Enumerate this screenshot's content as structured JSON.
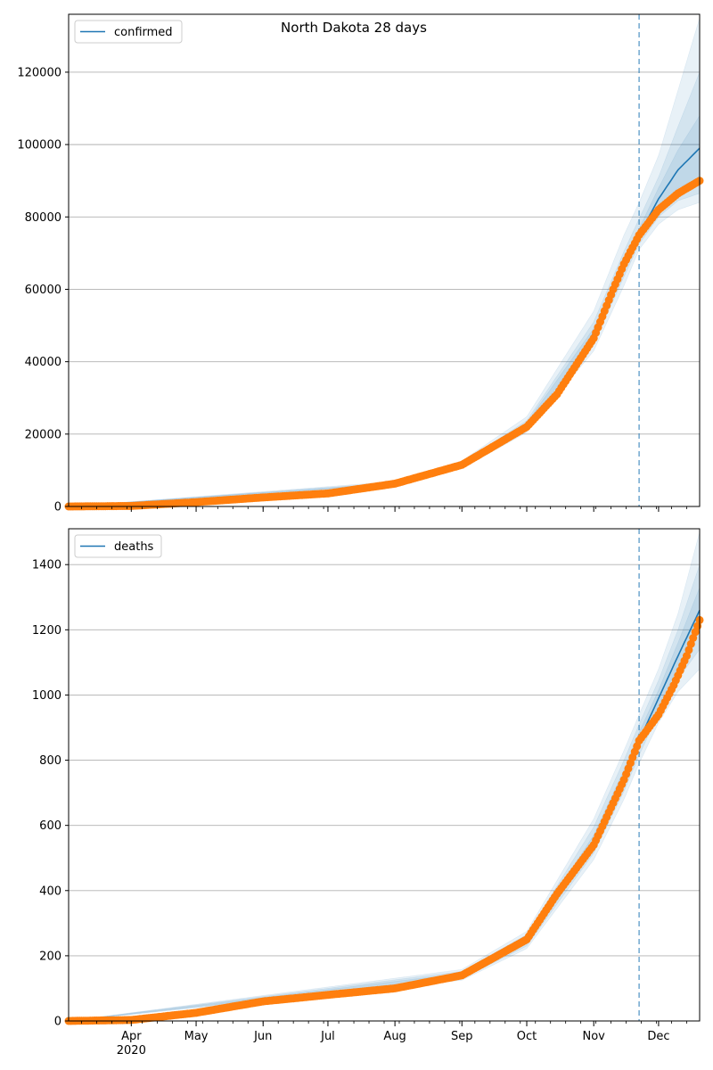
{
  "title": "North Dakota 28 days",
  "colors": {
    "model": "#1f77b4",
    "observed": "#ff7f0e",
    "band": "#1f77b4",
    "grid": "#b0b0b0",
    "forecast_line": "#1f77b4"
  },
  "x_axis": {
    "month_labels": [
      "Apr",
      "May",
      "Jun",
      "Jul",
      "Aug",
      "Sep",
      "Oct",
      "Nov",
      "Dec"
    ],
    "year_label": "2020",
    "range": [
      "2020-03-03",
      "2020-12-20"
    ],
    "forecast_start": "2020-11-22"
  },
  "chart_data": [
    {
      "type": "line",
      "legend": "confirmed",
      "ylim": [
        0,
        136000
      ],
      "yticks": [
        0,
        20000,
        40000,
        60000,
        80000,
        100000,
        120000
      ],
      "grid": "horizontal",
      "legend_placement": "top-left",
      "observed_anchors": [
        {
          "x": "2020-03-03",
          "y": 0
        },
        {
          "x": "2020-04-01",
          "y": 140
        },
        {
          "x": "2020-05-01",
          "y": 1200
        },
        {
          "x": "2020-06-01",
          "y": 2500
        },
        {
          "x": "2020-07-01",
          "y": 3600
        },
        {
          "x": "2020-08-01",
          "y": 6300
        },
        {
          "x": "2020-09-01",
          "y": 11500
        },
        {
          "x": "2020-10-01",
          "y": 22000
        },
        {
          "x": "2020-10-15",
          "y": 31000
        },
        {
          "x": "2020-11-01",
          "y": 46500
        },
        {
          "x": "2020-11-10",
          "y": 60000
        },
        {
          "x": "2020-11-15",
          "y": 67000
        },
        {
          "x": "2020-11-22",
          "y": 75000
        },
        {
          "x": "2020-12-01",
          "y": 82000
        },
        {
          "x": "2020-12-10",
          "y": 86500
        },
        {
          "x": "2020-12-20",
          "y": 90000
        }
      ],
      "model_anchors": [
        {
          "x": "2020-03-03",
          "y": 0
        },
        {
          "x": "2020-04-01",
          "y": 150
        },
        {
          "x": "2020-05-01",
          "y": 1200
        },
        {
          "x": "2020-06-01",
          "y": 2500
        },
        {
          "x": "2020-07-01",
          "y": 3600
        },
        {
          "x": "2020-08-01",
          "y": 6300
        },
        {
          "x": "2020-09-01",
          "y": 11500
        },
        {
          "x": "2020-10-01",
          "y": 22500
        },
        {
          "x": "2020-10-15",
          "y": 32000
        },
        {
          "x": "2020-11-01",
          "y": 48000
        },
        {
          "x": "2020-11-15",
          "y": 66500
        },
        {
          "x": "2020-11-22",
          "y": 75000
        },
        {
          "x": "2020-12-01",
          "y": 85000
        },
        {
          "x": "2020-12-10",
          "y": 93000
        },
        {
          "x": "2020-12-20",
          "y": 99000
        }
      ],
      "bands": [
        {
          "low": [
            {
              "x": "2020-03-03",
              "y": 0
            },
            {
              "x": "2020-08-01",
              "y": 5800
            },
            {
              "x": "2020-09-01",
              "y": 10500
            },
            {
              "x": "2020-10-01",
              "y": 20500
            },
            {
              "x": "2020-11-01",
              "y": 43000
            },
            {
              "x": "2020-11-15",
              "y": 61000
            },
            {
              "x": "2020-11-22",
              "y": 71000
            },
            {
              "x": "2020-12-01",
              "y": 78000
            },
            {
              "x": "2020-12-10",
              "y": 82000
            },
            {
              "x": "2020-12-20",
              "y": 84000
            }
          ],
          "high": [
            {
              "x": "2020-03-03",
              "y": 0
            },
            {
              "x": "2020-08-01",
              "y": 6900
            },
            {
              "x": "2020-09-01",
              "y": 12600
            },
            {
              "x": "2020-10-01",
              "y": 24800
            },
            {
              "x": "2020-11-01",
              "y": 54000
            },
            {
              "x": "2020-11-15",
              "y": 75000
            },
            {
              "x": "2020-11-22",
              "y": 84000
            },
            {
              "x": "2020-12-01",
              "y": 97000
            },
            {
              "x": "2020-12-10",
              "y": 115000
            },
            {
              "x": "2020-12-20",
              "y": 135000
            }
          ]
        },
        {
          "low": [
            {
              "x": "2020-03-03",
              "y": 0
            },
            {
              "x": "2020-08-01",
              "y": 6000
            },
            {
              "x": "2020-09-01",
              "y": 10900
            },
            {
              "x": "2020-10-01",
              "y": 21300
            },
            {
              "x": "2020-11-01",
              "y": 45000
            },
            {
              "x": "2020-11-15",
              "y": 63500
            },
            {
              "x": "2020-11-22",
              "y": 72500
            },
            {
              "x": "2020-12-01",
              "y": 80000
            },
            {
              "x": "2020-12-10",
              "y": 84500
            },
            {
              "x": "2020-12-20",
              "y": 86500
            }
          ],
          "high": [
            {
              "x": "2020-03-03",
              "y": 0
            },
            {
              "x": "2020-08-01",
              "y": 6600
            },
            {
              "x": "2020-09-01",
              "y": 12100
            },
            {
              "x": "2020-10-01",
              "y": 23700
            },
            {
              "x": "2020-11-01",
              "y": 51000
            },
            {
              "x": "2020-11-15",
              "y": 70500
            },
            {
              "x": "2020-11-22",
              "y": 79500
            },
            {
              "x": "2020-12-01",
              "y": 91000
            },
            {
              "x": "2020-12-10",
              "y": 105000
            },
            {
              "x": "2020-12-20",
              "y": 120000
            }
          ]
        },
        {
          "low": [
            {
              "x": "2020-03-03",
              "y": 0
            },
            {
              "x": "2020-08-01",
              "y": 6150
            },
            {
              "x": "2020-09-01",
              "y": 11200
            },
            {
              "x": "2020-10-01",
              "y": 21900
            },
            {
              "x": "2020-11-01",
              "y": 46800
            },
            {
              "x": "2020-11-15",
              "y": 65200
            },
            {
              "x": "2020-11-22",
              "y": 73800
            },
            {
              "x": "2020-12-01",
              "y": 82500
            },
            {
              "x": "2020-12-10",
              "y": 88000
            },
            {
              "x": "2020-12-20",
              "y": 91000
            }
          ],
          "high": [
            {
              "x": "2020-03-03",
              "y": 0
            },
            {
              "x": "2020-08-01",
              "y": 6450
            },
            {
              "x": "2020-09-01",
              "y": 11800
            },
            {
              "x": "2020-10-01",
              "y": 23100
            },
            {
              "x": "2020-11-01",
              "y": 49200
            },
            {
              "x": "2020-11-15",
              "y": 68000
            },
            {
              "x": "2020-11-22",
              "y": 76800
            },
            {
              "x": "2020-12-01",
              "y": 88000
            },
            {
              "x": "2020-12-10",
              "y": 98500
            },
            {
              "x": "2020-12-20",
              "y": 108000
            }
          ]
        }
      ]
    },
    {
      "type": "line",
      "legend": "deaths",
      "ylim": [
        0,
        1510
      ],
      "yticks": [
        0,
        200,
        400,
        600,
        800,
        1000,
        1200,
        1400
      ],
      "grid": "horizontal",
      "legend_placement": "top-left",
      "observed_anchors": [
        {
          "x": "2020-03-03",
          "y": 0
        },
        {
          "x": "2020-04-01",
          "y": 3
        },
        {
          "x": "2020-05-01",
          "y": 25
        },
        {
          "x": "2020-06-01",
          "y": 60
        },
        {
          "x": "2020-07-01",
          "y": 80
        },
        {
          "x": "2020-08-01",
          "y": 100
        },
        {
          "x": "2020-09-01",
          "y": 140
        },
        {
          "x": "2020-10-01",
          "y": 250
        },
        {
          "x": "2020-10-15",
          "y": 390
        },
        {
          "x": "2020-11-01",
          "y": 540
        },
        {
          "x": "2020-11-15",
          "y": 740
        },
        {
          "x": "2020-11-22",
          "y": 860
        },
        {
          "x": "2020-12-01",
          "y": 940
        },
        {
          "x": "2020-12-08",
          "y": 1030
        },
        {
          "x": "2020-12-14",
          "y": 1120
        },
        {
          "x": "2020-12-20",
          "y": 1230
        }
      ],
      "model_anchors": [
        {
          "x": "2020-03-03",
          "y": 0
        },
        {
          "x": "2020-04-01",
          "y": 3
        },
        {
          "x": "2020-05-01",
          "y": 25
        },
        {
          "x": "2020-06-01",
          "y": 60
        },
        {
          "x": "2020-07-01",
          "y": 80
        },
        {
          "x": "2020-08-01",
          "y": 100
        },
        {
          "x": "2020-09-01",
          "y": 140
        },
        {
          "x": "2020-10-01",
          "y": 245
        },
        {
          "x": "2020-10-15",
          "y": 385
        },
        {
          "x": "2020-11-01",
          "y": 550
        },
        {
          "x": "2020-11-15",
          "y": 745
        },
        {
          "x": "2020-11-22",
          "y": 860
        },
        {
          "x": "2020-12-01",
          "y": 990
        },
        {
          "x": "2020-12-10",
          "y": 1120
        },
        {
          "x": "2020-12-20",
          "y": 1260
        }
      ],
      "bands": [
        {
          "low": [
            {
              "x": "2020-03-03",
              "y": 0
            },
            {
              "x": "2020-09-01",
              "y": 125
            },
            {
              "x": "2020-10-01",
              "y": 222
            },
            {
              "x": "2020-11-01",
              "y": 495
            },
            {
              "x": "2020-11-15",
              "y": 680
            },
            {
              "x": "2020-11-22",
              "y": 790
            },
            {
              "x": "2020-12-01",
              "y": 915
            },
            {
              "x": "2020-12-10",
              "y": 1010
            },
            {
              "x": "2020-12-20",
              "y": 1080
            }
          ],
          "high": [
            {
              "x": "2020-03-03",
              "y": 0
            },
            {
              "x": "2020-09-01",
              "y": 158
            },
            {
              "x": "2020-10-01",
              "y": 275
            },
            {
              "x": "2020-11-01",
              "y": 620
            },
            {
              "x": "2020-11-15",
              "y": 830
            },
            {
              "x": "2020-11-22",
              "y": 940
            },
            {
              "x": "2020-12-01",
              "y": 1080
            },
            {
              "x": "2020-12-10",
              "y": 1250
            },
            {
              "x": "2020-12-20",
              "y": 1500
            }
          ]
        },
        {
          "low": [
            {
              "x": "2020-03-03",
              "y": 0
            },
            {
              "x": "2020-09-01",
              "y": 130
            },
            {
              "x": "2020-10-01",
              "y": 230
            },
            {
              "x": "2020-11-01",
              "y": 515
            },
            {
              "x": "2020-11-15",
              "y": 705
            },
            {
              "x": "2020-11-22",
              "y": 815
            },
            {
              "x": "2020-12-01",
              "y": 945
            },
            {
              "x": "2020-12-10",
              "y": 1050
            },
            {
              "x": "2020-12-20",
              "y": 1140
            }
          ],
          "high": [
            {
              "x": "2020-03-03",
              "y": 0
            },
            {
              "x": "2020-09-01",
              "y": 152
            },
            {
              "x": "2020-10-01",
              "y": 265
            },
            {
              "x": "2020-11-01",
              "y": 595
            },
            {
              "x": "2020-11-15",
              "y": 800
            },
            {
              "x": "2020-11-22",
              "y": 910
            },
            {
              "x": "2020-12-01",
              "y": 1045
            },
            {
              "x": "2020-12-10",
              "y": 1200
            },
            {
              "x": "2020-12-20",
              "y": 1400
            }
          ]
        },
        {
          "low": [
            {
              "x": "2020-03-03",
              "y": 0
            },
            {
              "x": "2020-09-01",
              "y": 135
            },
            {
              "x": "2020-10-01",
              "y": 237
            },
            {
              "x": "2020-11-01",
              "y": 530
            },
            {
              "x": "2020-11-15",
              "y": 725
            },
            {
              "x": "2020-11-22",
              "y": 838
            },
            {
              "x": "2020-12-01",
              "y": 967
            },
            {
              "x": "2020-12-10",
              "y": 1085
            },
            {
              "x": "2020-12-20",
              "y": 1200
            }
          ],
          "high": [
            {
              "x": "2020-03-03",
              "y": 0
            },
            {
              "x": "2020-09-01",
              "y": 146
            },
            {
              "x": "2020-10-01",
              "y": 255
            },
            {
              "x": "2020-11-01",
              "y": 570
            },
            {
              "x": "2020-11-15",
              "y": 770
            },
            {
              "x": "2020-11-22",
              "y": 885
            },
            {
              "x": "2020-12-01",
              "y": 1015
            },
            {
              "x": "2020-12-10",
              "y": 1160
            },
            {
              "x": "2020-12-20",
              "y": 1330
            }
          ]
        }
      ]
    }
  ]
}
